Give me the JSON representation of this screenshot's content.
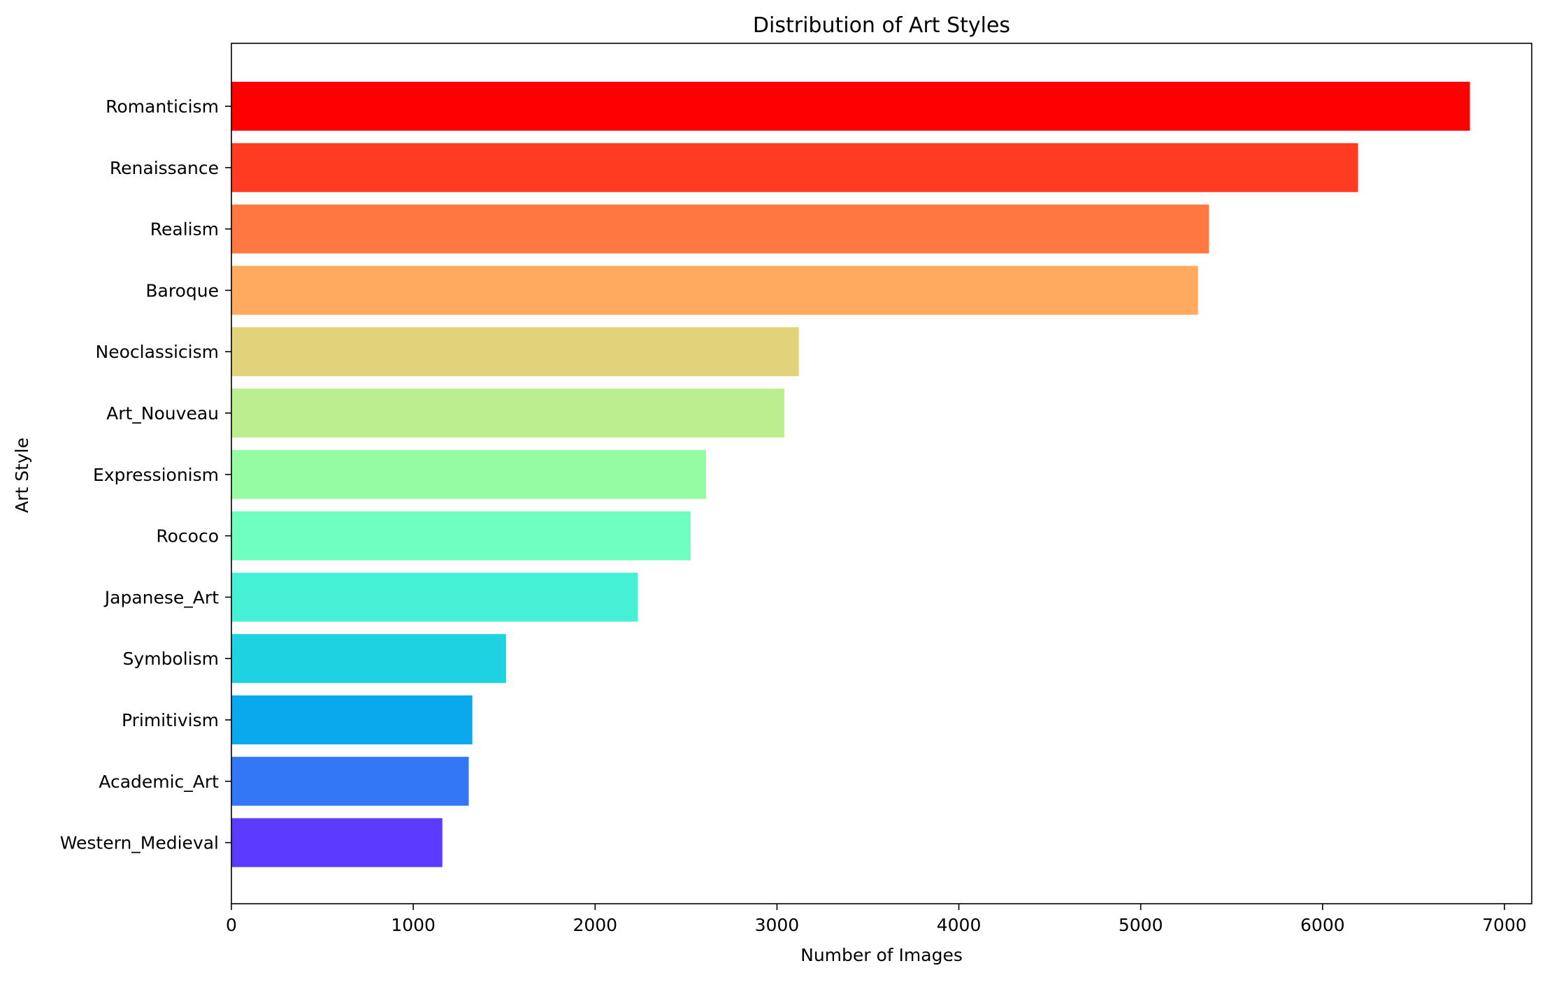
{
  "chart_data": {
    "type": "bar",
    "orientation": "horizontal",
    "title": "Distribution of Art Styles",
    "xlabel": "Number of Images",
    "ylabel": "Art Style",
    "categories": [
      "Romanticism",
      "Renaissance",
      "Realism",
      "Baroque",
      "Neoclassicism",
      "Art_Nouveau",
      "Expressionism",
      "Rococo",
      "Japanese_Art",
      "Symbolism",
      "Primitivism",
      "Academic_Art",
      "Western_Medieval"
    ],
    "values": [
      6810,
      6195,
      5375,
      5315,
      3120,
      3040,
      2610,
      2525,
      2235,
      1510,
      1325,
      1305,
      1160
    ],
    "colors": [
      "#ff0000",
      "#ff3c22",
      "#ff7741",
      "#ffaa5e",
      "#e2d27a",
      "#bbee8f",
      "#95fca4",
      "#6efebe",
      "#46f0d4",
      "#1fd2e2",
      "#0aa8ec",
      "#3377f7",
      "#5c3afe"
    ],
    "xlim": [
      0,
      7150
    ],
    "xticks": [
      0,
      1000,
      2000,
      3000,
      4000,
      5000,
      6000,
      7000
    ],
    "xtick_labels": [
      "0",
      "1000",
      "2000",
      "3000",
      "4000",
      "5000",
      "6000",
      "7000"
    ],
    "grid": false,
    "legend": "none"
  }
}
